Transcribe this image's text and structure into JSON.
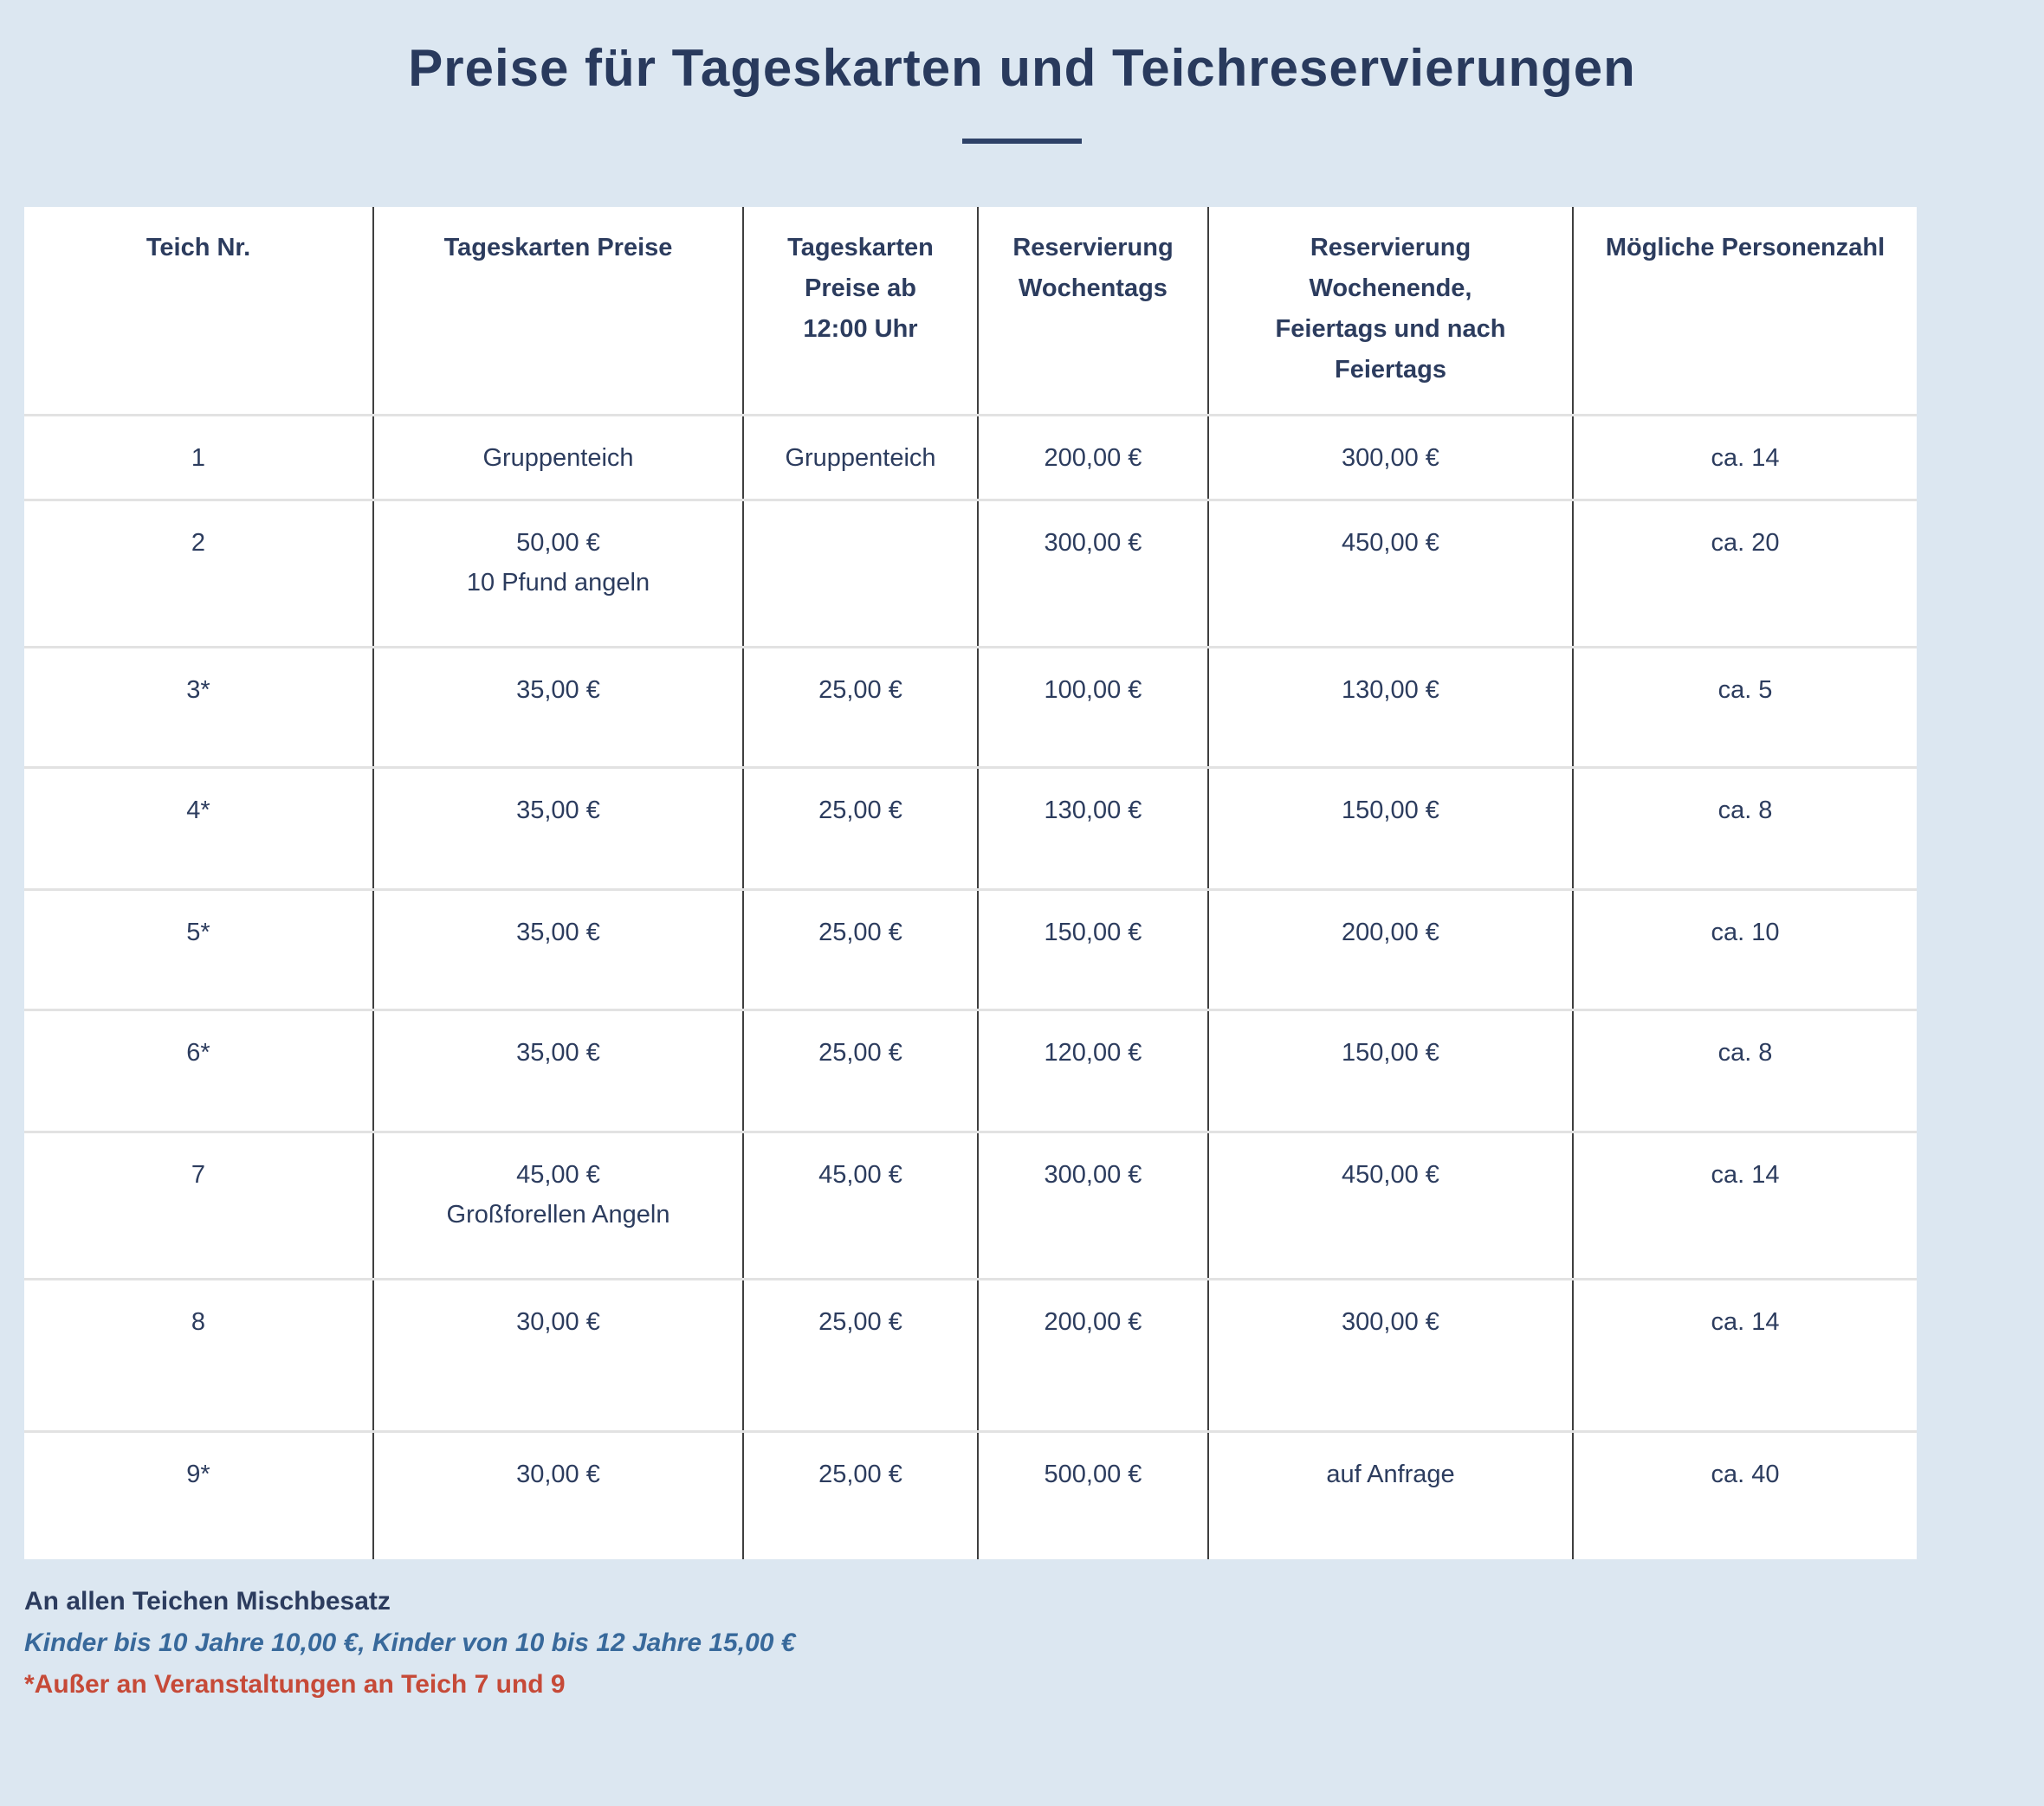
{
  "page": {
    "title": "Preise für Tageskarten und Teichreservierungen",
    "background_color": "#dce7f1",
    "text_navy": "#2c3c5e",
    "note_blue": "#38699b",
    "note_red": "#c64a38"
  },
  "table": {
    "columns": [
      {
        "label": "Teich Nr."
      },
      {
        "label": "Tageskarten Preise"
      },
      {
        "label": "Tageskarten\nPreise ab\n12:00 Uhr"
      },
      {
        "label": "Reservierung\nWochentags"
      },
      {
        "label": "Reservierung\nWochenende,\nFeiertags und nach\nFeiertags"
      },
      {
        "label": "Mögliche Personenzahl"
      }
    ],
    "rows": [
      [
        "1",
        "Gruppenteich",
        "Gruppenteich",
        "200,00 €",
        "300,00 €",
        "ca. 14"
      ],
      [
        "2",
        "50,00 €\n10 Pfund angeln",
        "",
        "300,00 €",
        "450,00 €",
        "ca. 20"
      ],
      [
        "3*",
        "35,00 €",
        "25,00 €",
        "100,00 €",
        "130,00 €",
        "ca. 5"
      ],
      [
        "4*",
        "35,00 €",
        "25,00 €",
        "130,00 €",
        "150,00 €",
        "ca. 8"
      ],
      [
        "5*",
        "35,00 €",
        "25,00 €",
        "150,00 €",
        "200,00 €",
        "ca. 10"
      ],
      [
        "6*",
        "35,00 €",
        "25,00 €",
        "120,00 €",
        "150,00 €",
        "ca. 8"
      ],
      [
        "7",
        "45,00 €\nGroßforellen Angeln",
        "45,00 €",
        "300,00 €",
        "450,00 €",
        "ca. 14"
      ],
      [
        "8",
        "30,00 €",
        "25,00 €",
        "200,00 €",
        "300,00 €",
        "ca. 14"
      ],
      [
        "9*",
        "30,00 €",
        "25,00 €",
        "500,00 €",
        "auf Anfrage",
        "ca. 40"
      ]
    ]
  },
  "notes": [
    {
      "text": "An allen Teichen Mischbesatz"
    },
    {
      "text": "Kinder bis 10 Jahre 10,00 €, Kinder von 10 bis 12 Jahre 15,00 €"
    },
    {
      "text": "*Außer an Veranstaltungen an Teich 7 und 9"
    }
  ]
}
